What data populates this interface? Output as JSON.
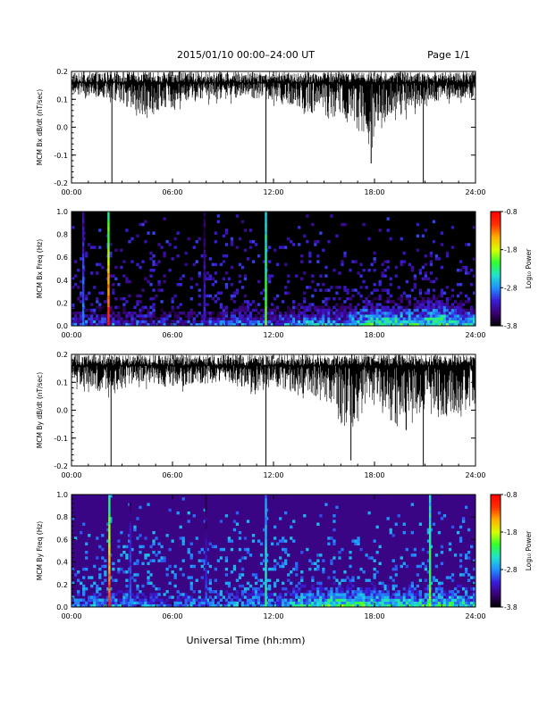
{
  "header": {
    "title": "2015/01/10  00:00–24:00 UT",
    "page": "Page 1/1"
  },
  "xaxis": {
    "label": "Universal Time (hh:mm)",
    "ticks": [
      "00:00",
      "06:00",
      "12:00",
      "18:00",
      "24:00"
    ],
    "range_hours": [
      0,
      24
    ]
  },
  "colorbar": {
    "label": "Log₁₀ Power",
    "ticks": [
      "-0.8",
      "-1.8",
      "-2.8",
      "-3.8"
    ],
    "range": [
      -3.8,
      -0.8
    ],
    "colors": [
      "#000000",
      "#3a0070",
      "#3a1bd8",
      "#1f8fff",
      "#22e0d0",
      "#30ff30",
      "#d8ff00",
      "#ffb000",
      "#ff3000",
      "#ff0000"
    ]
  },
  "chart_data": [
    {
      "type": "line",
      "ylabel": "MCM Bx dB/dt (nT/sec)",
      "ylim": [
        -0.2,
        0.2
      ],
      "yticks": [
        "0.2",
        "0.1",
        "0.0",
        "-0.1",
        "-0.2"
      ],
      "x_hours": [
        0,
        2.5,
        4.0,
        8.0,
        11.7,
        13.0,
        15.0,
        16.0,
        17.5,
        17.9,
        18.5,
        20.0,
        20.9,
        22.0,
        24.0
      ],
      "envelope_max": [
        0.2,
        0.2,
        0.2,
        0.2,
        0.2,
        0.2,
        0.2,
        0.2,
        0.2,
        0.2,
        0.2,
        0.2,
        0.2,
        0.2,
        0.2
      ],
      "envelope_min": [
        0.12,
        0.1,
        0.04,
        0.1,
        0.1,
        0.08,
        0.02,
        0.04,
        -0.04,
        -0.1,
        0.02,
        0.05,
        0.08,
        0.1,
        0.1
      ],
      "spikes": [
        {
          "x": 2.4,
          "y": -0.2
        },
        {
          "x": 11.55,
          "y": -0.2
        },
        {
          "x": 17.8,
          "y": -0.13
        },
        {
          "x": 20.9,
          "y": -0.2
        }
      ]
    },
    {
      "type": "heatmap",
      "ylabel": "MCM Bx Freq (Hz)",
      "ylim": [
        0.0,
        1.0
      ],
      "yticks": [
        "1.0",
        "0.8",
        "0.6",
        "0.4",
        "0.2",
        "0.0"
      ],
      "zlim": [
        -3.8,
        -0.8
      ],
      "background": -3.8,
      "low_band_intensity": [
        -3.0,
        -2.9,
        -3.0,
        -3.1,
        -3.0,
        -2.8,
        -2.9,
        -2.6,
        -2.7,
        -2.2,
        -2.4,
        -2.2,
        -2.6
      ],
      "streaks": [
        {
          "x": 0.7,
          "z": -2.8
        },
        {
          "x": 2.2,
          "z": -0.9
        },
        {
          "x": 7.9,
          "z": -3.1
        },
        {
          "x": 11.55,
          "z": -2.0
        }
      ]
    },
    {
      "type": "line",
      "ylabel": "MCM By dB/dt (nT/sec)",
      "ylim": [
        -0.2,
        0.2
      ],
      "yticks": [
        "0.2",
        "0.1",
        "0.0",
        "-0.1",
        "-0.2"
      ],
      "x_hours": [
        0,
        2.0,
        4.0,
        6.0,
        9.0,
        11.0,
        12.0,
        15.0,
        16.5,
        18.0,
        19.5,
        21.0,
        22.5,
        24.0
      ],
      "envelope_max": [
        0.2,
        0.2,
        0.2,
        0.2,
        0.2,
        0.2,
        0.2,
        0.2,
        0.2,
        0.2,
        0.2,
        0.2,
        0.2,
        0.2
      ],
      "envelope_min": [
        0.1,
        0.06,
        0.1,
        0.08,
        0.1,
        0.06,
        0.08,
        0.04,
        -0.06,
        0.04,
        -0.08,
        0.02,
        -0.04,
        0.02
      ],
      "spikes": [
        {
          "x": 2.35,
          "y": -0.2
        },
        {
          "x": 11.55,
          "y": -0.2
        },
        {
          "x": 16.6,
          "y": -0.18
        },
        {
          "x": 20.9,
          "y": -0.2
        }
      ]
    },
    {
      "type": "heatmap",
      "ylabel": "MCM By Freq (Hz)",
      "ylim": [
        0.0,
        1.0
      ],
      "yticks": [
        "1.0",
        "0.8",
        "0.6",
        "0.4",
        "0.2",
        "0.0"
      ],
      "zlim": [
        -3.8,
        -0.8
      ],
      "background": -3.4,
      "low_band_intensity": [
        -2.8,
        -2.6,
        -2.8,
        -2.9,
        -2.8,
        -2.7,
        -2.7,
        -2.3,
        -2.2,
        -2.3,
        -2.4,
        -2.3,
        -2.4
      ],
      "streaks": [
        {
          "x": 2.25,
          "z": -1.0
        },
        {
          "x": 3.5,
          "z": -2.9
        },
        {
          "x": 8.0,
          "z": -3.0
        },
        {
          "x": 11.55,
          "z": -2.3
        },
        {
          "x": 21.3,
          "z": -2.0
        }
      ]
    }
  ]
}
